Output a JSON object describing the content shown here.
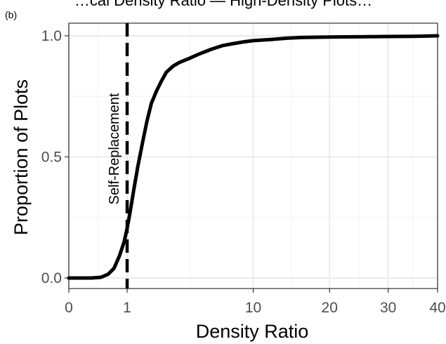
{
  "top_clipped_text": "…cal Density Ratio — High-Density Plots…",
  "chart_data": {
    "type": "line",
    "panel_label": "(b)",
    "xlabel": "Density Ratio",
    "ylabel": "Proportion of Plots",
    "x_scale": "sqrt",
    "xlim": [
      0,
      40
    ],
    "ylim": [
      0,
      1
    ],
    "x_ticks": [
      0,
      1,
      10,
      20,
      30,
      40
    ],
    "x_tick_labels": [
      "0",
      "1",
      "10",
      "20",
      "30",
      "40"
    ],
    "y_ticks": [
      0,
      0.5,
      1
    ],
    "y_tick_labels": [
      "0.0",
      "0.5",
      "1.0"
    ],
    "grid": true,
    "reference_line": {
      "x": 1,
      "style": "dashed",
      "label": "Self-Replacement"
    },
    "series": [
      {
        "color": "#000000",
        "x": [
          0,
          0.15,
          0.3,
          0.45,
          0.6,
          0.75,
          0.9,
          1.0,
          1.1,
          1.25,
          1.4,
          1.6,
          1.8,
          2.0,
          2.25,
          2.5,
          2.8,
          3.2,
          3.6,
          4.2,
          5.0,
          6.0,
          7.0,
          8.0,
          9.0,
          10.0,
          12.0,
          14.0,
          16.0,
          20.0,
          25.0,
          30.0,
          35.0,
          40.0
        ],
        "y": [
          0,
          0.0,
          0.003,
          0.015,
          0.04,
          0.09,
          0.15,
          0.205,
          0.27,
          0.37,
          0.46,
          0.56,
          0.65,
          0.72,
          0.77,
          0.81,
          0.85,
          0.875,
          0.89,
          0.905,
          0.925,
          0.945,
          0.96,
          0.968,
          0.975,
          0.98,
          0.985,
          0.99,
          0.993,
          0.995,
          0.996,
          0.997,
          0.998,
          1.0
        ]
      }
    ]
  }
}
